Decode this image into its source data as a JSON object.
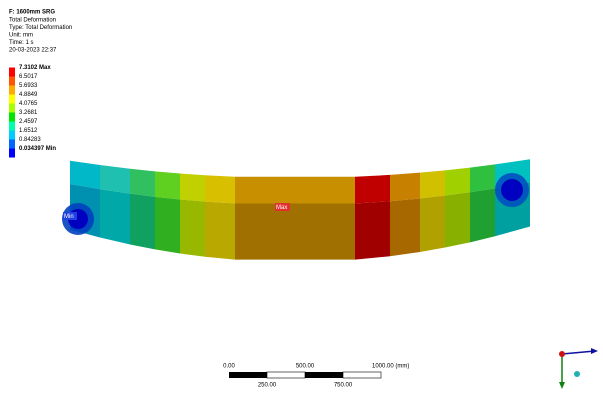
{
  "header": {
    "title": "F: 1600mm SRG",
    "lines": [
      "Total Deformation",
      "Type: Total Deformation",
      "Unit: mm",
      "Time: 1 s",
      "20-03-2023 22:37"
    ]
  },
  "legend": {
    "entries": [
      {
        "label": "7.3102 Max",
        "color": "#ff0000"
      },
      {
        "label": "6.5017",
        "color": "#ff5500"
      },
      {
        "label": "5.6933",
        "color": "#ffaa00"
      },
      {
        "label": "4.8849",
        "color": "#ffff00"
      },
      {
        "label": "4.0765",
        "color": "#aaff00"
      },
      {
        "label": "3.2681",
        "color": "#00e600"
      },
      {
        "label": "2.4597",
        "color": "#00ffaa"
      },
      {
        "label": "1.6512",
        "color": "#00ccff"
      },
      {
        "label": "0.84283",
        "color": "#0066ff"
      },
      {
        "label": "0.034397 Min",
        "color": "#0000ff"
      }
    ]
  },
  "probes": {
    "min": "Min",
    "max": "Max"
  },
  "scale_bar": {
    "top": [
      "0.00",
      "500.00",
      "1000.00 (mm)"
    ],
    "bottom": [
      "250.00",
      "750.00"
    ]
  }
}
